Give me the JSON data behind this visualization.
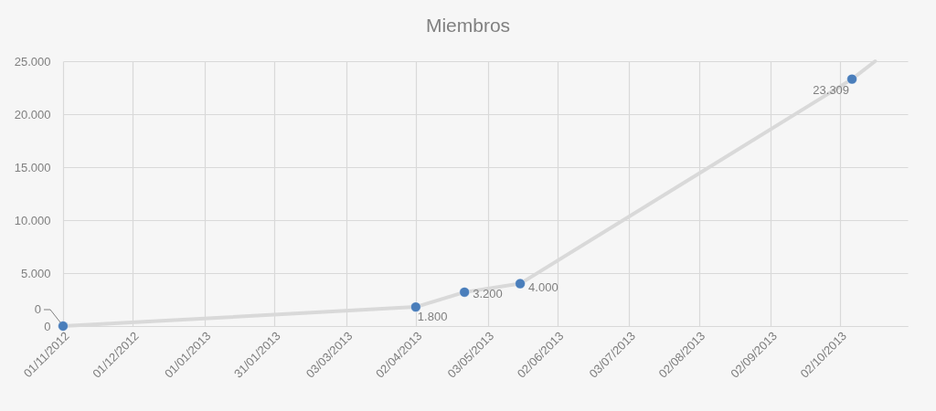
{
  "chart_data": {
    "type": "line",
    "title": "Miembros",
    "series": [
      {
        "color": "#d9d9d9",
        "marker": "none",
        "line_style": "solid",
        "x": [
          "2012-11-01",
          "2013-04-02",
          "2013-04-23",
          "2013-05-17",
          "2013-10-07",
          "2013-10-17"
        ],
        "values": [
          0,
          1800,
          3200,
          4000,
          23309,
          25000
        ]
      },
      {
        "type": "scatter",
        "color": "#4a7ebb",
        "marker": "circle",
        "x": [
          "2012-11-01",
          "2013-04-02",
          "2013-04-23",
          "2013-05-17",
          "2013-10-07"
        ],
        "values": [
          0,
          1800,
          3200,
          4000,
          23309
        ],
        "value_labels": [
          "0",
          "1.800",
          "3.200",
          "4.000",
          "23.309"
        ]
      }
    ],
    "xlim": [
      "2012-11-01",
      "2013-10-31"
    ],
    "xticks": [
      {
        "value": "2012-11-01",
        "label": "01/11/2012"
      },
      {
        "value": "2012-12-01",
        "label": "01/12/2012"
      },
      {
        "value": "2013-01-01",
        "label": "01/01/2013"
      },
      {
        "value": "2013-01-31",
        "label": "31/01/2013"
      },
      {
        "value": "2013-03-03",
        "label": "03/03/2013"
      },
      {
        "value": "2013-04-02",
        "label": "02/04/2013"
      },
      {
        "value": "2013-05-03",
        "label": "03/05/2013"
      },
      {
        "value": "2013-06-02",
        "label": "02/06/2013"
      },
      {
        "value": "2013-07-03",
        "label": "03/07/2013"
      },
      {
        "value": "2013-08-02",
        "label": "02/08/2013"
      },
      {
        "value": "2013-09-02",
        "label": "02/09/2013"
      },
      {
        "value": "2013-10-02",
        "label": "02/10/2013"
      }
    ],
    "ylim": [
      0,
      25000
    ],
    "yticks": [
      0,
      {
        "value": 5000,
        "label": "5.000"
      },
      {
        "value": 10000,
        "label": "10.000"
      },
      {
        "value": 15000,
        "label": "15.000"
      },
      {
        "value": 20000,
        "label": "20.000"
      },
      {
        "value": 25000,
        "label": "25.000"
      }
    ],
    "grid": true
  }
}
